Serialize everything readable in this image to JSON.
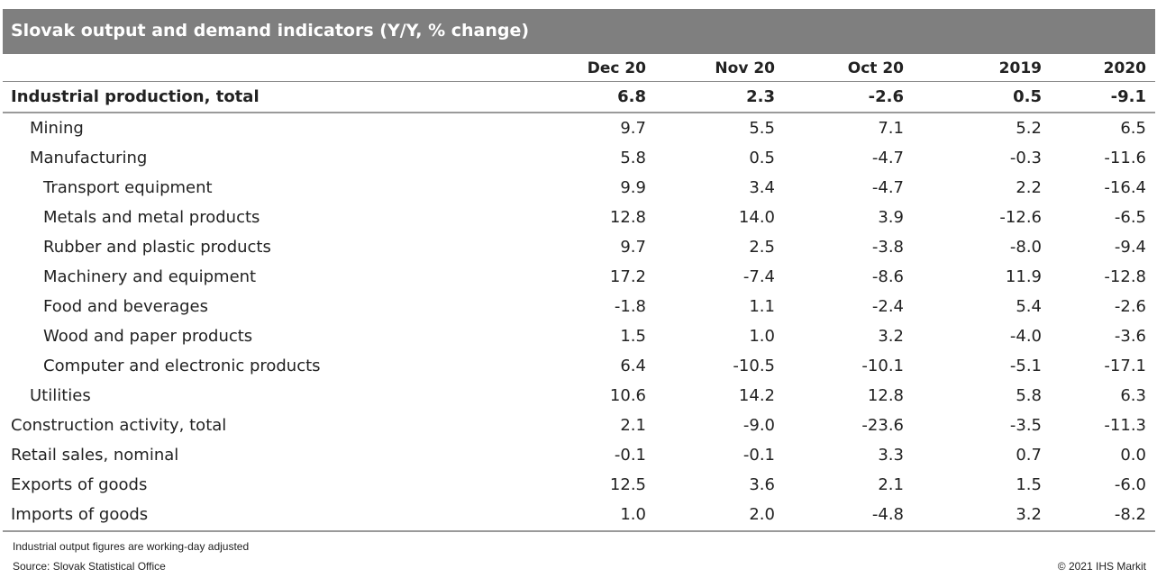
{
  "title": "Slovak output and demand indicators (Y/Y, % change)",
  "columns": [
    "Dec 20",
    "Nov 20",
    "Oct 20",
    "2019",
    "2020"
  ],
  "rows": [
    {
      "label": "Industrial production, total",
      "values": [
        "6.8",
        "2.3",
        "-2.6",
        "0.5",
        "-9.1"
      ]
    },
    {
      "label": "Mining",
      "values": [
        "9.7",
        "5.5",
        "7.1",
        "5.2",
        "6.5"
      ]
    },
    {
      "label": "Manufacturing",
      "values": [
        "5.8",
        "0.5",
        "-4.7",
        "-0.3",
        "-11.6"
      ]
    },
    {
      "label": "Transport equipment",
      "values": [
        "9.9",
        "3.4",
        "-4.7",
        "2.2",
        "-16.4"
      ]
    },
    {
      "label": "Metals and metal products",
      "values": [
        "12.8",
        "14.0",
        "3.9",
        "-12.6",
        "-6.5"
      ]
    },
    {
      "label": "Rubber and plastic products",
      "values": [
        "9.7",
        "2.5",
        "-3.8",
        "-8.0",
        "-9.4"
      ]
    },
    {
      "label": "Machinery and equipment",
      "values": [
        "17.2",
        "-7.4",
        "-8.6",
        "11.9",
        "-12.8"
      ]
    },
    {
      "label": "Food and beverages",
      "values": [
        "-1.8",
        "1.1",
        "-2.4",
        "5.4",
        "-2.6"
      ]
    },
    {
      "label": "Wood and paper products",
      "values": [
        "1.5",
        "1.0",
        "3.2",
        "-4.0",
        "-3.6"
      ]
    },
    {
      "label": "Computer and electronic products",
      "values": [
        "6.4",
        "-10.5",
        "-10.1",
        "-5.1",
        "-17.1"
      ]
    },
    {
      "label": "Utilities",
      "values": [
        "10.6",
        "14.2",
        "12.8",
        "5.8",
        "6.3"
      ]
    },
    {
      "label": "Construction activity, total",
      "values": [
        "2.1",
        "-9.0",
        "-23.6",
        "-3.5",
        "-11.3"
      ]
    },
    {
      "label": "Retail sales, nominal",
      "values": [
        "-0.1",
        "-0.1",
        "3.3",
        "0.7",
        "0.0"
      ]
    },
    {
      "label": "Exports of goods",
      "values": [
        "12.5",
        "3.6",
        "2.1",
        "1.5",
        "-6.0"
      ]
    },
    {
      "label": "Imports of goods",
      "values": [
        "1.0",
        "2.0",
        "-4.8",
        "3.2",
        "-8.2"
      ]
    }
  ],
  "footnote": "Industrial output figures are working-day adjusted",
  "source": "Source: Slovak Statistical Office",
  "copyright": "© 2021 IHS Markit"
}
